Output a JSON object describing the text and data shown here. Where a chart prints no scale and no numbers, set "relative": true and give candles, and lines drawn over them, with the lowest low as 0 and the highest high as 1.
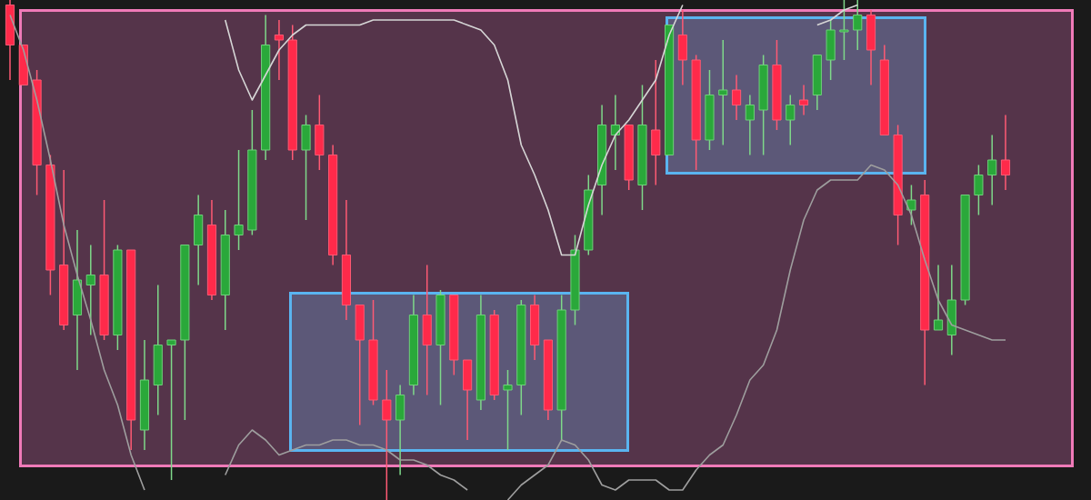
{
  "chart_data": {
    "type": "candlestick",
    "relative": true,
    "categories": [
      null,
      null,
      null,
      null,
      null,
      null,
      null,
      null,
      null,
      null,
      null,
      null,
      null,
      null,
      null,
      null,
      null,
      null,
      null,
      null,
      null,
      null,
      null,
      null,
      null,
      null,
      null,
      null,
      null,
      null,
      null,
      null,
      null,
      null,
      null,
      null,
      null,
      null,
      null,
      null,
      null,
      null,
      null,
      null,
      null,
      null,
      null,
      null,
      null,
      null,
      null,
      null,
      null,
      null,
      null,
      null,
      null,
      null,
      null,
      null,
      null,
      null,
      null,
      null,
      null,
      null,
      null,
      null,
      null,
      null,
      null,
      null,
      null,
      null,
      null
    ],
    "ohlc": [
      [
        0.99,
        1,
        0.84,
        0.91
      ],
      [
        0.91,
        0.91,
        0.83,
        0.83
      ],
      [
        0.84,
        0.86,
        0.61,
        0.67
      ],
      [
        0.67,
        0.69,
        0.41,
        0.46
      ],
      [
        0.47,
        0.66,
        0.34,
        0.35
      ],
      [
        0.37,
        0.54,
        0.26,
        0.44
      ],
      [
        0.43,
        0.51,
        0.33,
        0.45
      ],
      [
        0.45,
        0.6,
        0.32,
        0.33
      ],
      [
        0.33,
        0.51,
        0.3,
        0.5
      ],
      [
        0.5,
        0.5,
        0.1,
        0.16
      ],
      [
        0.14,
        0.32,
        0.1,
        0.24
      ],
      [
        0.23,
        0.43,
        0.17,
        0.31
      ],
      [
        0.31,
        0.32,
        0.04,
        0.32
      ],
      [
        0.32,
        0.51,
        0.16,
        0.51
      ],
      [
        0.51,
        0.61,
        0.43,
        0.57
      ],
      [
        0.55,
        0.6,
        0.4,
        0.41
      ],
      [
        0.41,
        0.58,
        0.34,
        0.53
      ],
      [
        0.53,
        0.7,
        0.5,
        0.55
      ],
      [
        0.54,
        0.78,
        0.53,
        0.7
      ],
      [
        0.7,
        0.97,
        0.68,
        0.91
      ],
      [
        0.93,
        0.96,
        0.84,
        0.92
      ],
      [
        0.92,
        0.95,
        0.68,
        0.7
      ],
      [
        0.7,
        0.77,
        0.56,
        0.75
      ],
      [
        0.75,
        0.81,
        0.66,
        0.69
      ],
      [
        0.69,
        0.71,
        0.47,
        0.49
      ],
      [
        0.49,
        0.6,
        0.36,
        0.39
      ],
      [
        0.39,
        0.39,
        0.15,
        0.32
      ],
      [
        0.32,
        0.4,
        0.19,
        0.2
      ],
      [
        0.2,
        0.26,
        0,
        0.16
      ],
      [
        0.16,
        0.23,
        0.05,
        0.21
      ],
      [
        0.23,
        0.41,
        0.21,
        0.37
      ],
      [
        0.37,
        0.47,
        0.21,
        0.31
      ],
      [
        0.31,
        0.42,
        0.19,
        0.41
      ],
      [
        0.41,
        0.41,
        0.25,
        0.28
      ],
      [
        0.28,
        0.28,
        0.12,
        0.22
      ],
      [
        0.2,
        0.41,
        0.18,
        0.37
      ],
      [
        0.37,
        0.38,
        0.2,
        0.21
      ],
      [
        0.22,
        0.26,
        0.1,
        0.23
      ],
      [
        0.23,
        0.4,
        0.17,
        0.39
      ],
      [
        0.39,
        0.41,
        0.28,
        0.31
      ],
      [
        0.32,
        0.32,
        0.16,
        0.18
      ],
      [
        0.18,
        0.41,
        0.12,
        0.38
      ],
      [
        0.38,
        0.53,
        0.35,
        0.5
      ],
      [
        0.5,
        0.65,
        0.49,
        0.62
      ],
      [
        0.63,
        0.79,
        0.57,
        0.75
      ],
      [
        0.73,
        0.81,
        0.66,
        0.75
      ],
      [
        0.75,
        0.75,
        0.62,
        0.64
      ],
      [
        0.63,
        0.83,
        0.58,
        0.75
      ],
      [
        0.74,
        0.88,
        0.63,
        0.69
      ],
      [
        0.69,
        0.95,
        0.69,
        0.95
      ],
      [
        0.93,
        0.98,
        0.83,
        0.88
      ],
      [
        0.88,
        0.89,
        0.66,
        0.72
      ],
      [
        0.72,
        0.86,
        0.7,
        0.81
      ],
      [
        0.81,
        0.92,
        0.71,
        0.82
      ],
      [
        0.82,
        0.85,
        0.76,
        0.79
      ],
      [
        0.76,
        0.81,
        0.69,
        0.79
      ],
      [
        0.78,
        0.89,
        0.69,
        0.87
      ],
      [
        0.87,
        0.92,
        0.74,
        0.76
      ],
      [
        0.76,
        0.81,
        0.71,
        0.79
      ],
      [
        0.8,
        0.83,
        0.77,
        0.79
      ],
      [
        0.81,
        0.89,
        0.78,
        0.89
      ],
      [
        0.88,
        0.96,
        0.84,
        0.94
      ],
      [
        0.94,
        1,
        0.88,
        0.94
      ],
      [
        0.94,
        1,
        0.9,
        0.97
      ],
      [
        0.97,
        0.98,
        0.83,
        0.9
      ],
      [
        0.88,
        0.91,
        0.73,
        0.73
      ],
      [
        0.73,
        0.75,
        0.51,
        0.57
      ],
      [
        0.58,
        0.63,
        0.55,
        0.6
      ],
      [
        0.61,
        0.64,
        0.23,
        0.34
      ],
      [
        0.34,
        0.47,
        0.34,
        0.36
      ],
      [
        0.33,
        0.47,
        0.29,
        0.4
      ],
      [
        0.4,
        0.61,
        0.39,
        0.61
      ],
      [
        0.61,
        0.67,
        0.57,
        0.65
      ],
      [
        0.65,
        0.73,
        0.59,
        0.68
      ],
      [
        0.68,
        0.77,
        0.62,
        0.65
      ]
    ],
    "series": [
      {
        "type": "line",
        "color": "#9e9e9e",
        "values": [
          0.97,
          0.9,
          0.8,
          0.68,
          0.55,
          0.45,
          0.36,
          0.26,
          0.19,
          0.09,
          0.02,
          null,
          null,
          null,
          null,
          null,
          0.05,
          0.11,
          0.14,
          0.12,
          0.09,
          0.1,
          0.11,
          0.11,
          0.12,
          0.12,
          0.11,
          0.11,
          0.1,
          0.08,
          0.08,
          0.07,
          0.05,
          0.04,
          0.02,
          null,
          null,
          0,
          0.03,
          0.05,
          0.07,
          0.12,
          0.11,
          0.08,
          0.03,
          0.02,
          0.04,
          0.04,
          0.04,
          0.02,
          0.02,
          0.06,
          0.09,
          0.11,
          0.17,
          0.24,
          0.27,
          0.34,
          0.46,
          0.56,
          0.62,
          0.64,
          0.64,
          0.64,
          0.67,
          0.66,
          0.63,
          0.57,
          0.48,
          0.4,
          0.35,
          0.34,
          0.33,
          0.32,
          0.32
        ]
      },
      {
        "type": "line",
        "color": "#d6d6d6",
        "values": [
          null,
          null,
          null,
          null,
          null,
          null,
          null,
          null,
          null,
          null,
          null,
          null,
          null,
          null,
          null,
          null,
          0.96,
          0.86,
          0.8,
          0.85,
          0.9,
          0.93,
          0.95,
          0.95,
          0.95,
          0.95,
          0.95,
          0.96,
          0.96,
          0.96,
          0.96,
          0.96,
          0.96,
          0.96,
          0.95,
          0.94,
          0.91,
          0.84,
          0.71,
          0.65,
          0.58,
          0.49,
          0.49,
          0.59,
          0.67,
          0.73,
          0.76,
          0.8,
          0.84,
          0.93,
          0.99,
          null,
          null,
          null,
          null,
          null,
          null,
          null,
          null,
          null,
          0.95,
          0.96,
          0.98,
          0.99,
          null,
          null,
          null,
          null,
          null,
          null,
          null,
          null,
          null,
          null,
          null
        ]
      }
    ]
  }
}
